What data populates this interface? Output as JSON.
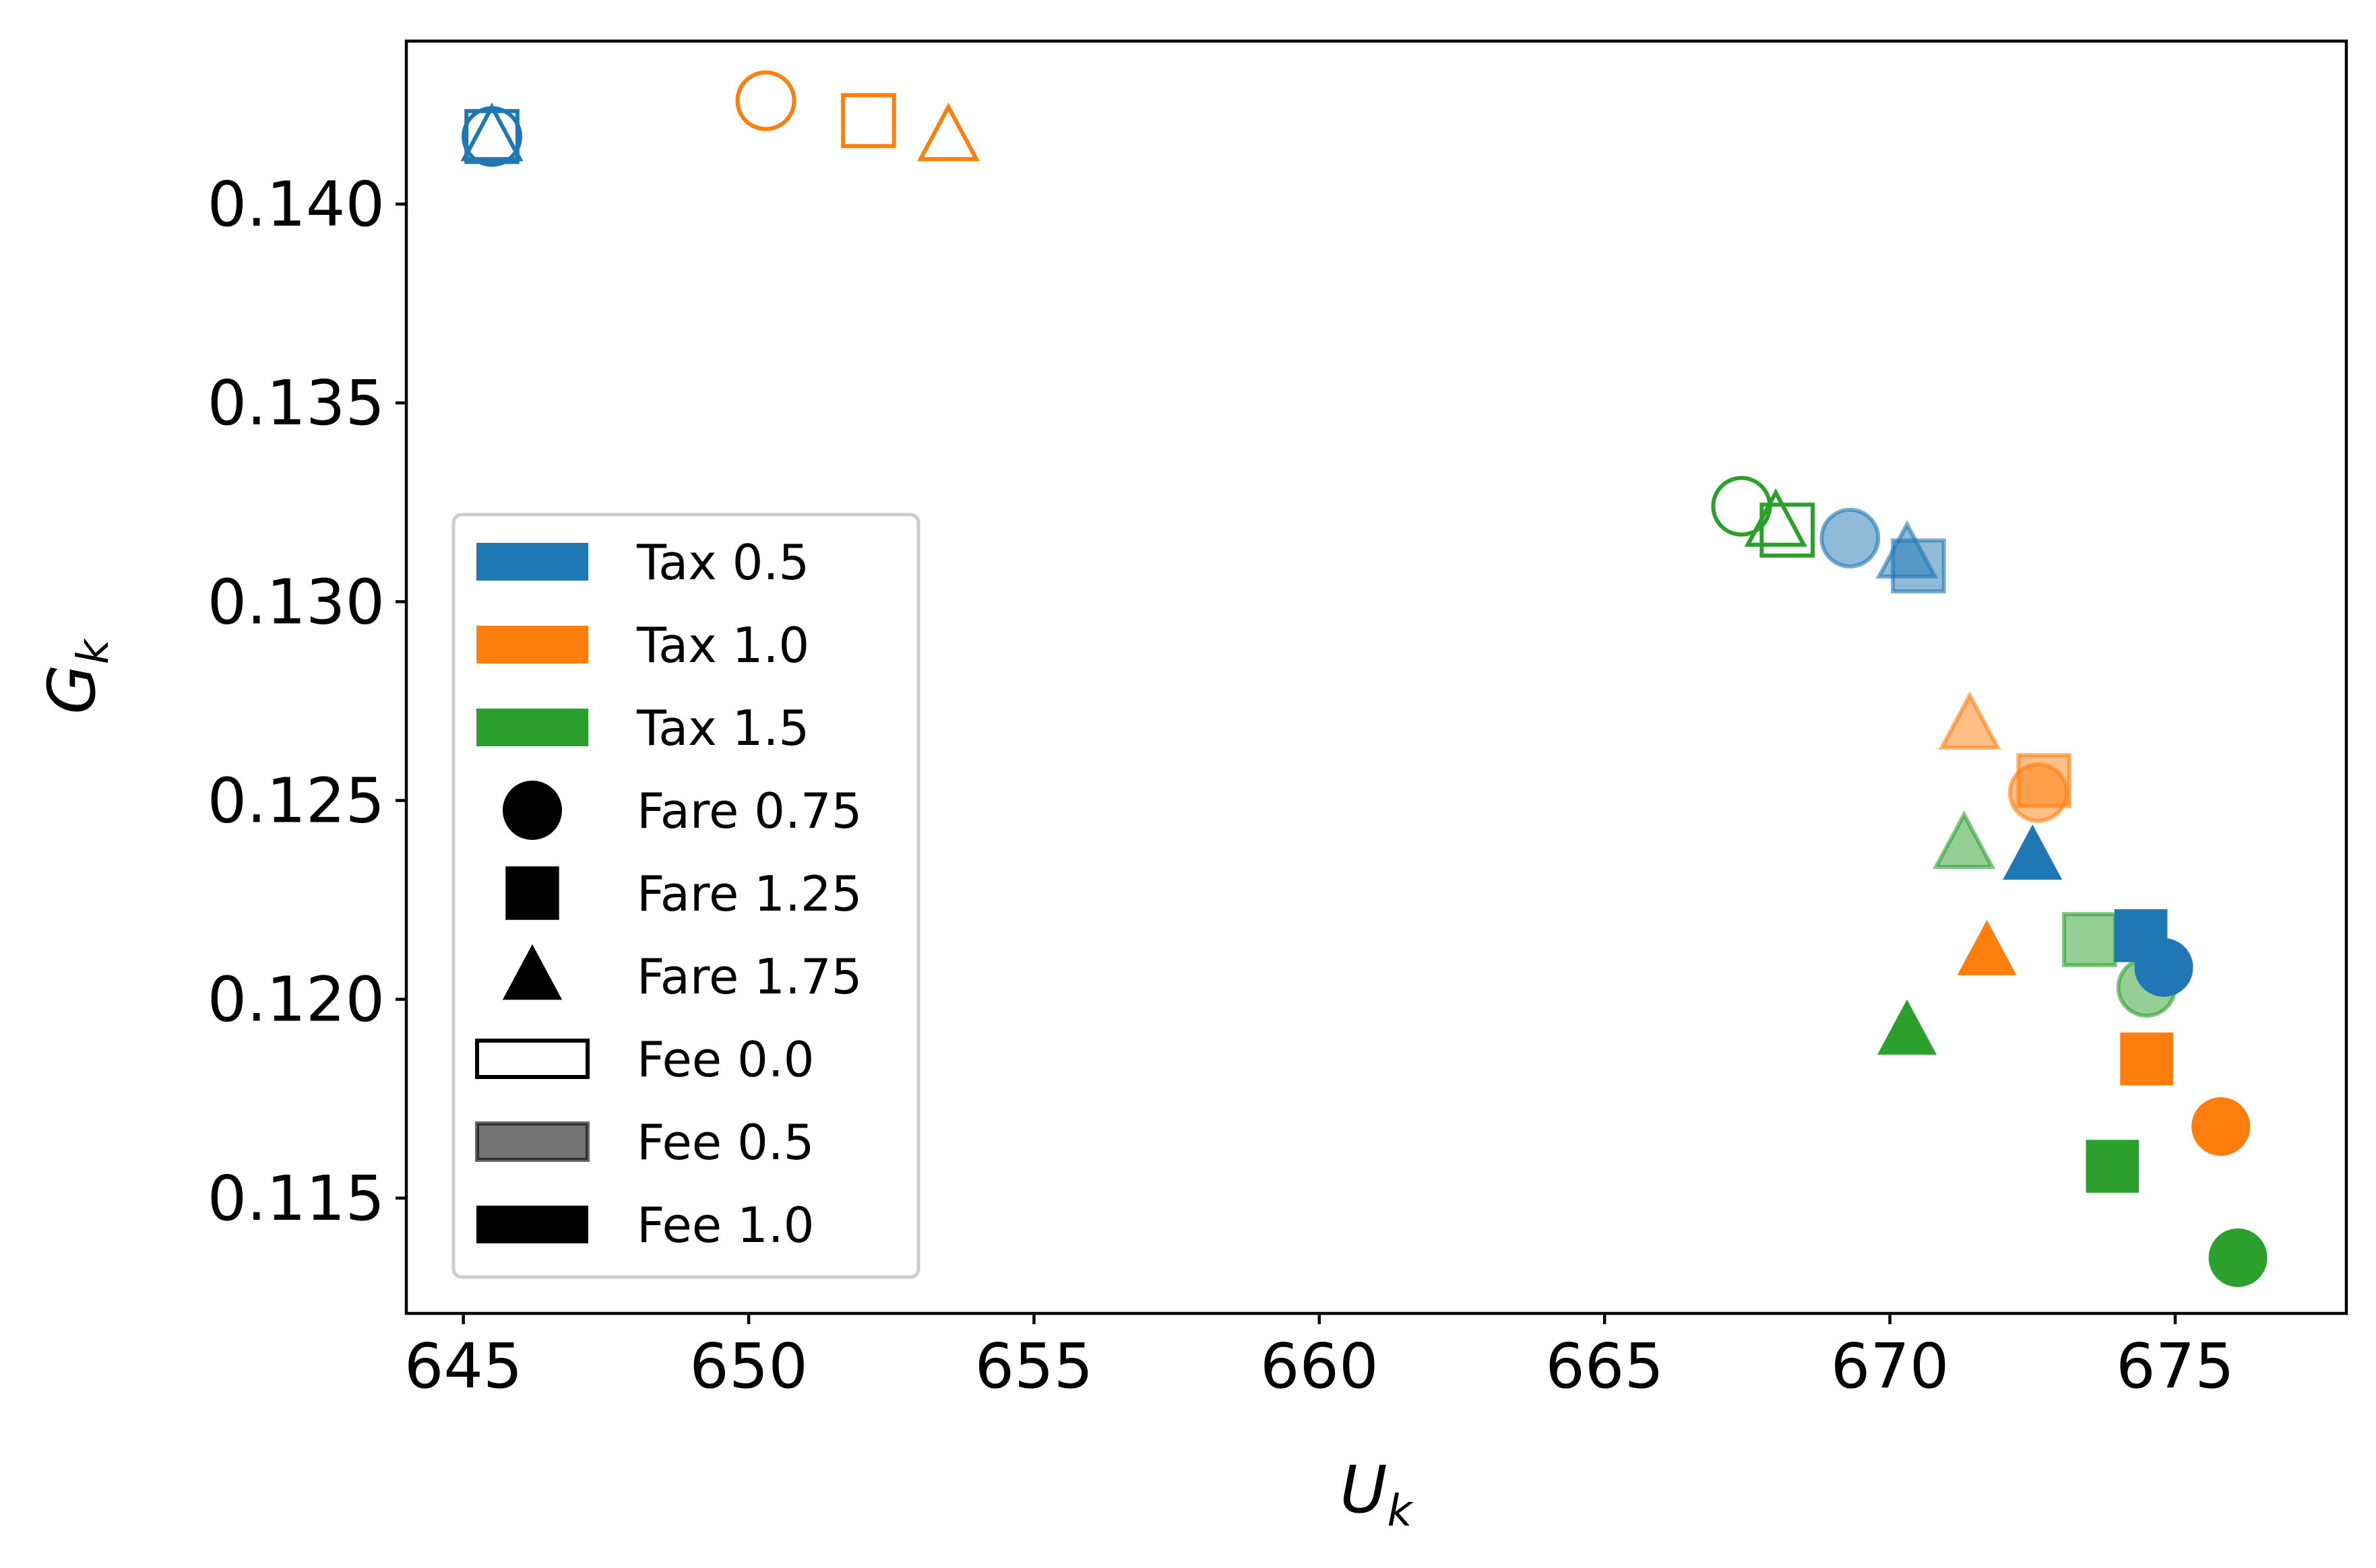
{
  "chart_data": {
    "type": "scatter",
    "xlabel": "U",
    "xlabel_sub": "k",
    "ylabel": "G",
    "ylabel_sub": "k",
    "xlim": [
      644.0,
      678.0
    ],
    "ylim": [
      0.1121,
      0.1441
    ],
    "x_ticks": [
      645,
      650,
      655,
      660,
      665,
      670,
      675
    ],
    "x_tick_labels": [
      "645",
      "650",
      "655",
      "660",
      "665",
      "670",
      "675"
    ],
    "y_ticks": [
      0.115,
      0.12,
      0.125,
      0.13,
      0.135,
      0.14
    ],
    "y_tick_labels": [
      "0.115",
      "0.120",
      "0.125",
      "0.130",
      "0.135",
      "0.140"
    ],
    "colors": {
      "tax_0.5": "#1f77b4",
      "tax_1.0": "#ff7f0e",
      "tax_1.5": "#2ca02c"
    },
    "legend": {
      "placement": "lower-left",
      "entries": [
        {
          "label": "Tax 0.5",
          "kind": "patch",
          "color": "#1f77b4",
          "style": "filled"
        },
        {
          "label": "Tax 1.0",
          "kind": "patch",
          "color": "#ff7f0e",
          "style": "filled"
        },
        {
          "label": "Tax 1.5",
          "kind": "patch",
          "color": "#2ca02c",
          "style": "filled"
        },
        {
          "label": "Fare 0.75",
          "kind": "marker",
          "marker": "circle",
          "color": "#000000"
        },
        {
          "label": "Fare 1.25",
          "kind": "marker",
          "marker": "square",
          "color": "#000000"
        },
        {
          "label": "Fare 1.75",
          "kind": "marker",
          "marker": "triangle",
          "color": "#000000"
        },
        {
          "label": "Fee 0.0",
          "kind": "patch",
          "color": "#000000",
          "style": "hollow"
        },
        {
          "label": "Fee 0.5",
          "kind": "patch",
          "color": "#000000",
          "style": "semi"
        },
        {
          "label": "Fee 1.0",
          "kind": "patch",
          "color": "#000000",
          "style": "filled"
        }
      ]
    },
    "points": [
      {
        "tax": 0.5,
        "fare": 0.75,
        "fee": 0.0,
        "x": 645.5,
        "y": 0.1417
      },
      {
        "tax": 0.5,
        "fare": 1.25,
        "fee": 0.0,
        "x": 645.5,
        "y": 0.1417
      },
      {
        "tax": 0.5,
        "fare": 1.75,
        "fee": 0.0,
        "x": 645.5,
        "y": 0.1417
      },
      {
        "tax": 1.0,
        "fare": 0.75,
        "fee": 0.0,
        "x": 650.3,
        "y": 0.1426
      },
      {
        "tax": 1.0,
        "fare": 1.25,
        "fee": 0.0,
        "x": 652.1,
        "y": 0.1421
      },
      {
        "tax": 1.0,
        "fare": 1.75,
        "fee": 0.0,
        "x": 653.5,
        "y": 0.1417
      },
      {
        "tax": 1.5,
        "fare": 0.75,
        "fee": 0.0,
        "x": 667.4,
        "y": 0.1324
      },
      {
        "tax": 1.5,
        "fare": 1.25,
        "fee": 0.0,
        "x": 668.2,
        "y": 0.1318
      },
      {
        "tax": 1.5,
        "fare": 1.75,
        "fee": 0.0,
        "x": 668.0,
        "y": 0.132
      },
      {
        "tax": 0.5,
        "fare": 0.75,
        "fee": 0.5,
        "x": 669.3,
        "y": 0.1316
      },
      {
        "tax": 0.5,
        "fare": 1.25,
        "fee": 0.5,
        "x": 670.5,
        "y": 0.1309
      },
      {
        "tax": 0.5,
        "fare": 1.75,
        "fee": 0.5,
        "x": 670.3,
        "y": 0.1312
      },
      {
        "tax": 1.0,
        "fare": 0.75,
        "fee": 0.5,
        "x": 672.6,
        "y": 0.1252
      },
      {
        "tax": 1.0,
        "fare": 1.25,
        "fee": 0.5,
        "x": 672.7,
        "y": 0.1255
      },
      {
        "tax": 1.0,
        "fare": 1.75,
        "fee": 0.5,
        "x": 671.4,
        "y": 0.1269
      },
      {
        "tax": 1.5,
        "fare": 0.75,
        "fee": 0.5,
        "x": 674.5,
        "y": 0.1203
      },
      {
        "tax": 1.5,
        "fare": 1.25,
        "fee": 0.5,
        "x": 673.5,
        "y": 0.1215
      },
      {
        "tax": 1.5,
        "fare": 1.75,
        "fee": 0.5,
        "x": 671.3,
        "y": 0.1239
      },
      {
        "tax": 0.5,
        "fare": 0.75,
        "fee": 1.0,
        "x": 674.8,
        "y": 0.1208
      },
      {
        "tax": 0.5,
        "fare": 1.25,
        "fee": 1.0,
        "x": 674.4,
        "y": 0.1216
      },
      {
        "tax": 0.5,
        "fare": 1.75,
        "fee": 1.0,
        "x": 672.5,
        "y": 0.1236
      },
      {
        "tax": 1.0,
        "fare": 0.75,
        "fee": 1.0,
        "x": 675.8,
        "y": 0.1168
      },
      {
        "tax": 1.0,
        "fare": 1.25,
        "fee": 1.0,
        "x": 674.5,
        "y": 0.1185
      },
      {
        "tax": 1.0,
        "fare": 1.75,
        "fee": 1.0,
        "x": 671.7,
        "y": 0.1212
      },
      {
        "tax": 1.5,
        "fare": 0.75,
        "fee": 1.0,
        "x": 676.1,
        "y": 0.1135
      },
      {
        "tax": 1.5,
        "fare": 1.25,
        "fee": 1.0,
        "x": 673.9,
        "y": 0.1158
      },
      {
        "tax": 1.5,
        "fare": 1.75,
        "fee": 1.0,
        "x": 670.3,
        "y": 0.1192
      }
    ]
  }
}
